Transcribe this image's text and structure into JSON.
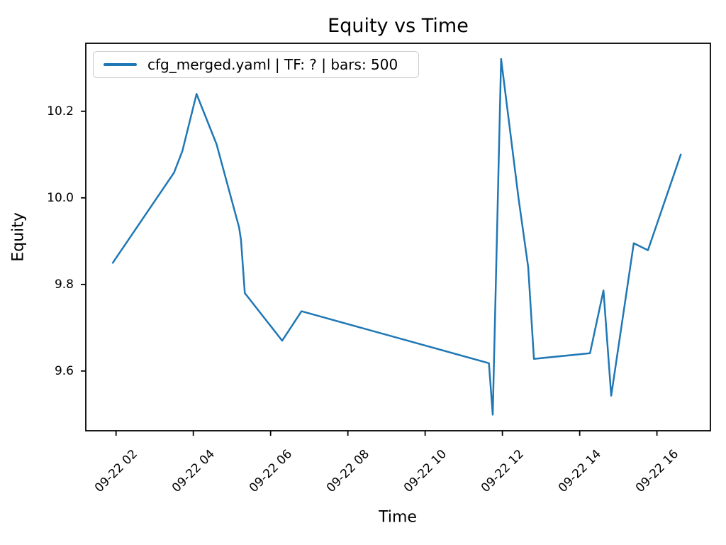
{
  "chart_data": {
    "type": "line",
    "title": "Equity vs Time",
    "xlabel": "Time",
    "ylabel": "Equity",
    "grid": false,
    "background_color": "#ffffff",
    "axis_color": "#000000",
    "legend": {
      "position": "upper left",
      "entries": [
        {
          "label": "cfg_merged.yaml | TF: ? | bars: 500",
          "color": "#1f77b4"
        }
      ]
    },
    "x_ticks": [
      {
        "label": "09-22 02",
        "time": "09-22 02:00"
      },
      {
        "label": "09-22 04",
        "time": "09-22 04:00"
      },
      {
        "label": "09-22 06",
        "time": "09-22 06:00"
      },
      {
        "label": "09-22 08",
        "time": "09-22 08:00"
      },
      {
        "label": "09-22 10",
        "time": "09-22 10:00"
      },
      {
        "label": "09-22 12",
        "time": "09-22 12:00"
      },
      {
        "label": "09-22 14",
        "time": "09-22 14:00"
      },
      {
        "label": "09-22 16",
        "time": "09-22 16:00"
      }
    ],
    "y_ticks": [
      {
        "label": "10.2",
        "value": 10.2
      },
      {
        "label": "10.0",
        "value": 10.0
      },
      {
        "label": "9.8",
        "value": 9.8
      },
      {
        "label": "9.6",
        "value": 9.6
      }
    ],
    "xlim": [
      "09-22 01:13",
      "09-22 17:23"
    ],
    "ylim": [
      9.462,
      10.357
    ],
    "series": [
      {
        "name": "cfg_merged.yaml | TF: ? | bars: 500",
        "color": "#1f77b4",
        "points": [
          {
            "time": "09-22 01:55",
            "equity": 9.85
          },
          {
            "time": "09-22 03:30",
            "equity": 10.058
          },
          {
            "time": "09-22 03:43",
            "equity": 10.108
          },
          {
            "time": "09-22 04:05",
            "equity": 10.24
          },
          {
            "time": "09-22 04:36",
            "equity": 10.124
          },
          {
            "time": "09-22 05:11",
            "equity": 9.932
          },
          {
            "time": "09-22 05:14",
            "equity": 9.903
          },
          {
            "time": "09-22 05:20",
            "equity": 9.78
          },
          {
            "time": "09-22 06:18",
            "equity": 9.67
          },
          {
            "time": "09-22 06:48",
            "equity": 9.738
          },
          {
            "time": "09-22 11:39",
            "equity": 9.618
          },
          {
            "time": "09-22 11:45",
            "equity": 9.499
          },
          {
            "time": "09-22 11:58",
            "equity": 10.321
          },
          {
            "time": "09-22 12:25",
            "equity": 10.0
          },
          {
            "time": "09-22 12:40",
            "equity": 9.84
          },
          {
            "time": "09-22 12:49",
            "equity": 9.628
          },
          {
            "time": "09-22 14:16",
            "equity": 9.641
          },
          {
            "time": "09-22 14:37",
            "equity": 9.786
          },
          {
            "time": "09-22 14:49",
            "equity": 9.543
          },
          {
            "time": "09-22 15:24",
            "equity": 9.895
          },
          {
            "time": "09-22 15:46",
            "equity": 9.879
          },
          {
            "time": "09-22 16:37",
            "equity": 10.1
          }
        ]
      }
    ]
  }
}
